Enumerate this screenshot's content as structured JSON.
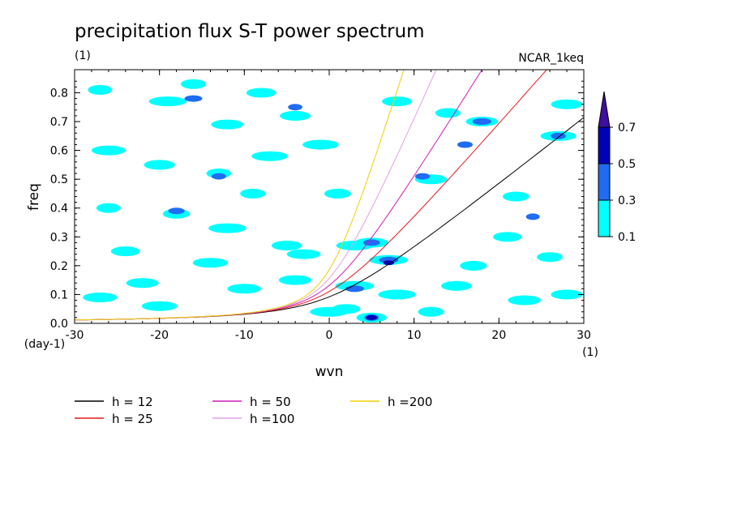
{
  "chart_data": {
    "type": "heatmap",
    "title": "precipitation flux S-T power spectrum",
    "subtitle_left": "(1)",
    "subtitle_right": "NCAR_1keq",
    "xlabel": "wvn",
    "ylabel": "freq",
    "x_unit": "(1)",
    "y_unit": "(day-1)",
    "xlim": [
      -30,
      30
    ],
    "ylim": [
      0,
      0.88
    ],
    "x_ticks": [
      -30,
      -20,
      -10,
      0,
      10,
      20,
      30
    ],
    "y_ticks": [
      0.0,
      0.1,
      0.2,
      0.3,
      0.4,
      0.5,
      0.6,
      0.7,
      0.8
    ],
    "x_tick_labels": [
      "-30",
      "-20",
      "-10",
      "0",
      "10",
      "20",
      "30"
    ],
    "y_tick_labels": [
      "0.0",
      "0.1",
      "0.2",
      "0.3",
      "0.4",
      "0.5",
      "0.6",
      "0.7",
      "0.8"
    ],
    "colorbar": {
      "levels": [
        0.1,
        0.3,
        0.5,
        0.7
      ],
      "labels": [
        "0.1",
        "0.3",
        "0.5",
        "0.7"
      ],
      "colors": [
        "#00ffff",
        "#1f6cf2",
        "#0000b8",
        "#3f0fa0"
      ]
    },
    "contour_blobs": [
      {
        "x": -27,
        "y": 0.81,
        "level": 0
      },
      {
        "x": -19,
        "y": 0.77,
        "level": 0
      },
      {
        "x": -16,
        "y": 0.83,
        "level": 0
      },
      {
        "x": -12,
        "y": 0.69,
        "level": 0
      },
      {
        "x": -8,
        "y": 0.8,
        "level": 0
      },
      {
        "x": -4,
        "y": 0.72,
        "level": 0
      },
      {
        "x": -16,
        "y": 0.78,
        "level": 1
      },
      {
        "x": -4,
        "y": 0.75,
        "level": 1
      },
      {
        "x": -26,
        "y": 0.6,
        "level": 0
      },
      {
        "x": -20,
        "y": 0.55,
        "level": 0
      },
      {
        "x": -13,
        "y": 0.52,
        "level": 0
      },
      {
        "x": -13,
        "y": 0.51,
        "level": 1
      },
      {
        "x": -7,
        "y": 0.58,
        "level": 0
      },
      {
        "x": -26,
        "y": 0.4,
        "level": 0
      },
      {
        "x": -18,
        "y": 0.38,
        "level": 0
      },
      {
        "x": -18,
        "y": 0.39,
        "level": 1
      },
      {
        "x": -12,
        "y": 0.33,
        "level": 0
      },
      {
        "x": -5,
        "y": 0.27,
        "level": 0
      },
      {
        "x": -3,
        "y": 0.24,
        "level": 0
      },
      {
        "x": -24,
        "y": 0.25,
        "level": 0
      },
      {
        "x": -14,
        "y": 0.21,
        "level": 0
      },
      {
        "x": -22,
        "y": 0.14,
        "level": 0
      },
      {
        "x": -10,
        "y": 0.12,
        "level": 0
      },
      {
        "x": -4,
        "y": 0.15,
        "level": 0
      },
      {
        "x": 3,
        "y": 0.27,
        "level": 0
      },
      {
        "x": 5,
        "y": 0.28,
        "level": 0
      },
      {
        "x": 5,
        "y": 0.28,
        "level": 1
      },
      {
        "x": 7,
        "y": 0.22,
        "level": 0
      },
      {
        "x": 7,
        "y": 0.22,
        "level": 1
      },
      {
        "x": 7,
        "y": 0.21,
        "level": 2
      },
      {
        "x": 3,
        "y": 0.13,
        "level": 0
      },
      {
        "x": 3,
        "y": 0.12,
        "level": 1
      },
      {
        "x": 2,
        "y": 0.05,
        "level": 0
      },
      {
        "x": 5,
        "y": 0.02,
        "level": 0
      },
      {
        "x": 5,
        "y": 0.02,
        "level": 1
      },
      {
        "x": 5,
        "y": 0.02,
        "level": 2
      },
      {
        "x": 0,
        "y": 0.04,
        "level": 0
      },
      {
        "x": 8,
        "y": 0.1,
        "level": 0
      },
      {
        "x": 12,
        "y": 0.5,
        "level": 0
      },
      {
        "x": 11,
        "y": 0.51,
        "level": 1
      },
      {
        "x": 8,
        "y": 0.77,
        "level": 0
      },
      {
        "x": 14,
        "y": 0.73,
        "level": 0
      },
      {
        "x": 18,
        "y": 0.7,
        "level": 0
      },
      {
        "x": 18,
        "y": 0.7,
        "level": 1
      },
      {
        "x": 16,
        "y": 0.62,
        "level": 1
      },
      {
        "x": 27,
        "y": 0.65,
        "level": 0
      },
      {
        "x": 27,
        "y": 0.65,
        "level": 1
      },
      {
        "x": 28,
        "y": 0.76,
        "level": 0
      },
      {
        "x": 22,
        "y": 0.44,
        "level": 0
      },
      {
        "x": 24,
        "y": 0.37,
        "level": 1
      },
      {
        "x": 21,
        "y": 0.3,
        "level": 0
      },
      {
        "x": 26,
        "y": 0.23,
        "level": 0
      },
      {
        "x": 17,
        "y": 0.2,
        "level": 0
      },
      {
        "x": 15,
        "y": 0.13,
        "level": 0
      },
      {
        "x": 23,
        "y": 0.08,
        "level": 0
      },
      {
        "x": 12,
        "y": 0.04,
        "level": 0
      },
      {
        "x": 28,
        "y": 0.1,
        "level": 0
      },
      {
        "x": -20,
        "y": 0.06,
        "level": 0
      },
      {
        "x": -27,
        "y": 0.09,
        "level": 0
      },
      {
        "x": -1,
        "y": 0.62,
        "level": 0
      },
      {
        "x": 1,
        "y": 0.45,
        "level": 0
      },
      {
        "x": -9,
        "y": 0.45,
        "level": 0
      }
    ],
    "dispersion_curves": [
      {
        "name": "h = 12",
        "h": 12,
        "color": "#000000"
      },
      {
        "name": "h = 25",
        "h": 25,
        "color": "#e31a1c"
      },
      {
        "name": "h = 50",
        "h": 50,
        "color": "#d01cb8"
      },
      {
        "name": "h =100",
        "h": 100,
        "color": "#e0a0e8"
      },
      {
        "name": "h =200",
        "h": 200,
        "color": "#f0d000"
      }
    ],
    "grid": false,
    "legend_position": "bottom"
  }
}
